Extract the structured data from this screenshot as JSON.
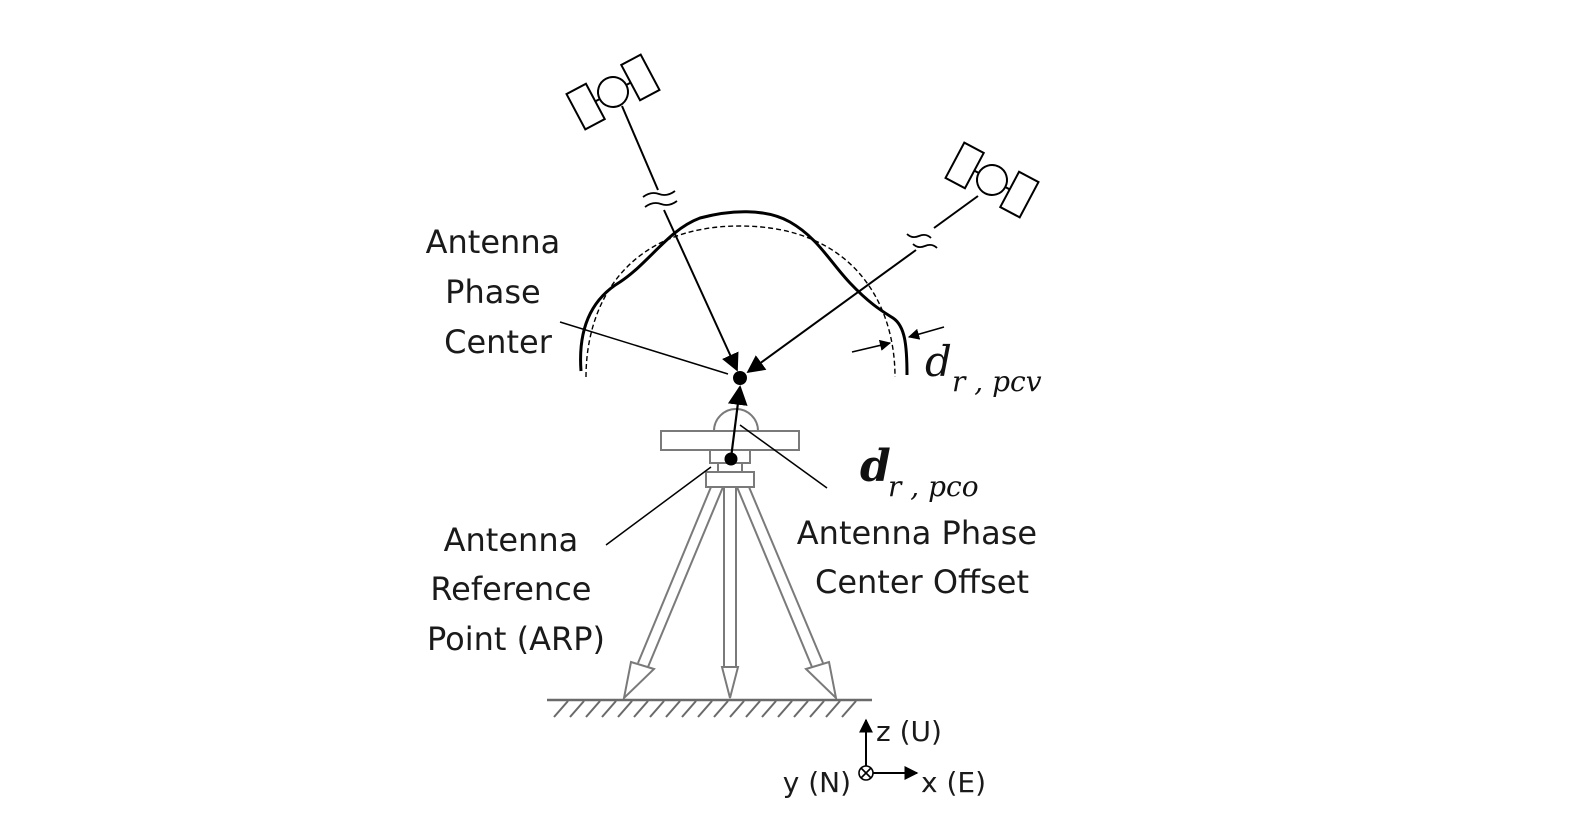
{
  "labels": {
    "phase_center": [
      "Antenna",
      "Phase",
      "Center"
    ],
    "arp": [
      "Antenna",
      "Reference",
      "Point (ARP)"
    ],
    "pco": [
      "Antenna Phase",
      "Center Offset"
    ]
  },
  "symbols": {
    "pcv_main": "d",
    "pcv_sub": "r , pcv",
    "pco_main": "d",
    "pco_sub": "r , pco"
  },
  "axes": {
    "z": "z (U)",
    "y": "y (N)",
    "x": "x (E)"
  }
}
